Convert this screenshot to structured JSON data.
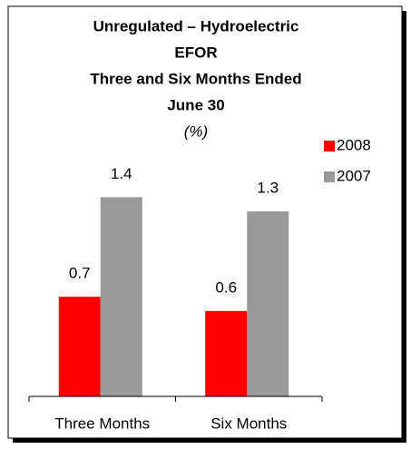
{
  "chart_data": {
    "type": "bar",
    "title": [
      "Unregulated – Hydroelectric",
      "EFOR",
      "Three and Six Months Ended",
      "June 30"
    ],
    "subtitle": "(%)",
    "categories": [
      "Three Months",
      "Six Months"
    ],
    "series": [
      {
        "name": "2008",
        "color": "#ff0000",
        "values": [
          0.7,
          0.6
        ]
      },
      {
        "name": "2007",
        "color": "#999999",
        "values": [
          1.4,
          1.3
        ]
      }
    ],
    "ylim": [
      0,
      1.6
    ],
    "legend": "right"
  }
}
